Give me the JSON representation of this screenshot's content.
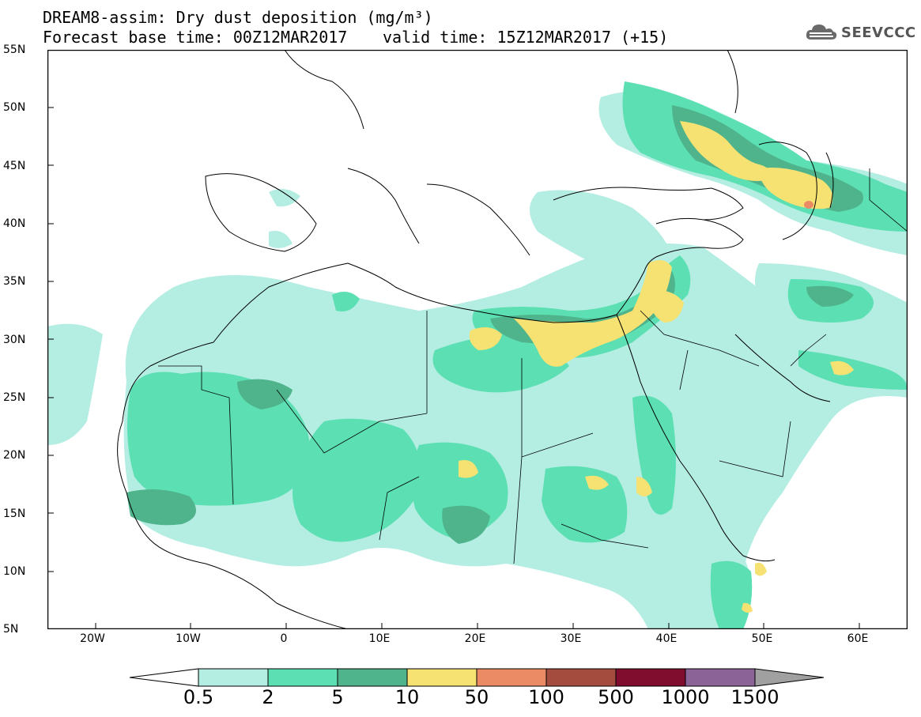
{
  "header": {
    "title_line1": "DREAM8-assim: Dry dust deposition (mg/m³)",
    "title_line2": "Forecast base time: 00Z12MAR2017",
    "valid_time": "valid time: 15Z12MAR2017 (+15)",
    "logo_text": "SEEVCCC",
    "logo_icon": "cloud-icon"
  },
  "map": {
    "lat_labels": [
      "55N",
      "50N",
      "45N",
      "40N",
      "35N",
      "30N",
      "25N",
      "20N",
      "15N",
      "10N",
      "5N"
    ],
    "lon_labels": [
      "20W",
      "10W",
      "0",
      "10E",
      "20E",
      "30E",
      "40E",
      "50E",
      "60E"
    ],
    "extent": {
      "lon_min": -25,
      "lon_max": 65,
      "lat_min": 5,
      "lat_max": 55
    }
  },
  "colorbar": {
    "labels": [
      "0.5",
      "2",
      "5",
      "10",
      "50",
      "100",
      "500",
      "1000",
      "1500"
    ],
    "colors": [
      "#ffffff",
      "#b4ede2",
      "#5ce0b3",
      "#4fb48c",
      "#f5e272",
      "#eb8b66",
      "#a44d3f",
      "#800d2e",
      "#8c6397",
      "#a0a0a0"
    ]
  },
  "colors": {
    "level_0_5": "#b4ede2",
    "level_2": "#5ce0b3",
    "level_5": "#4fb48c",
    "level_10": "#f5e272",
    "level_50": "#eb8b66"
  }
}
